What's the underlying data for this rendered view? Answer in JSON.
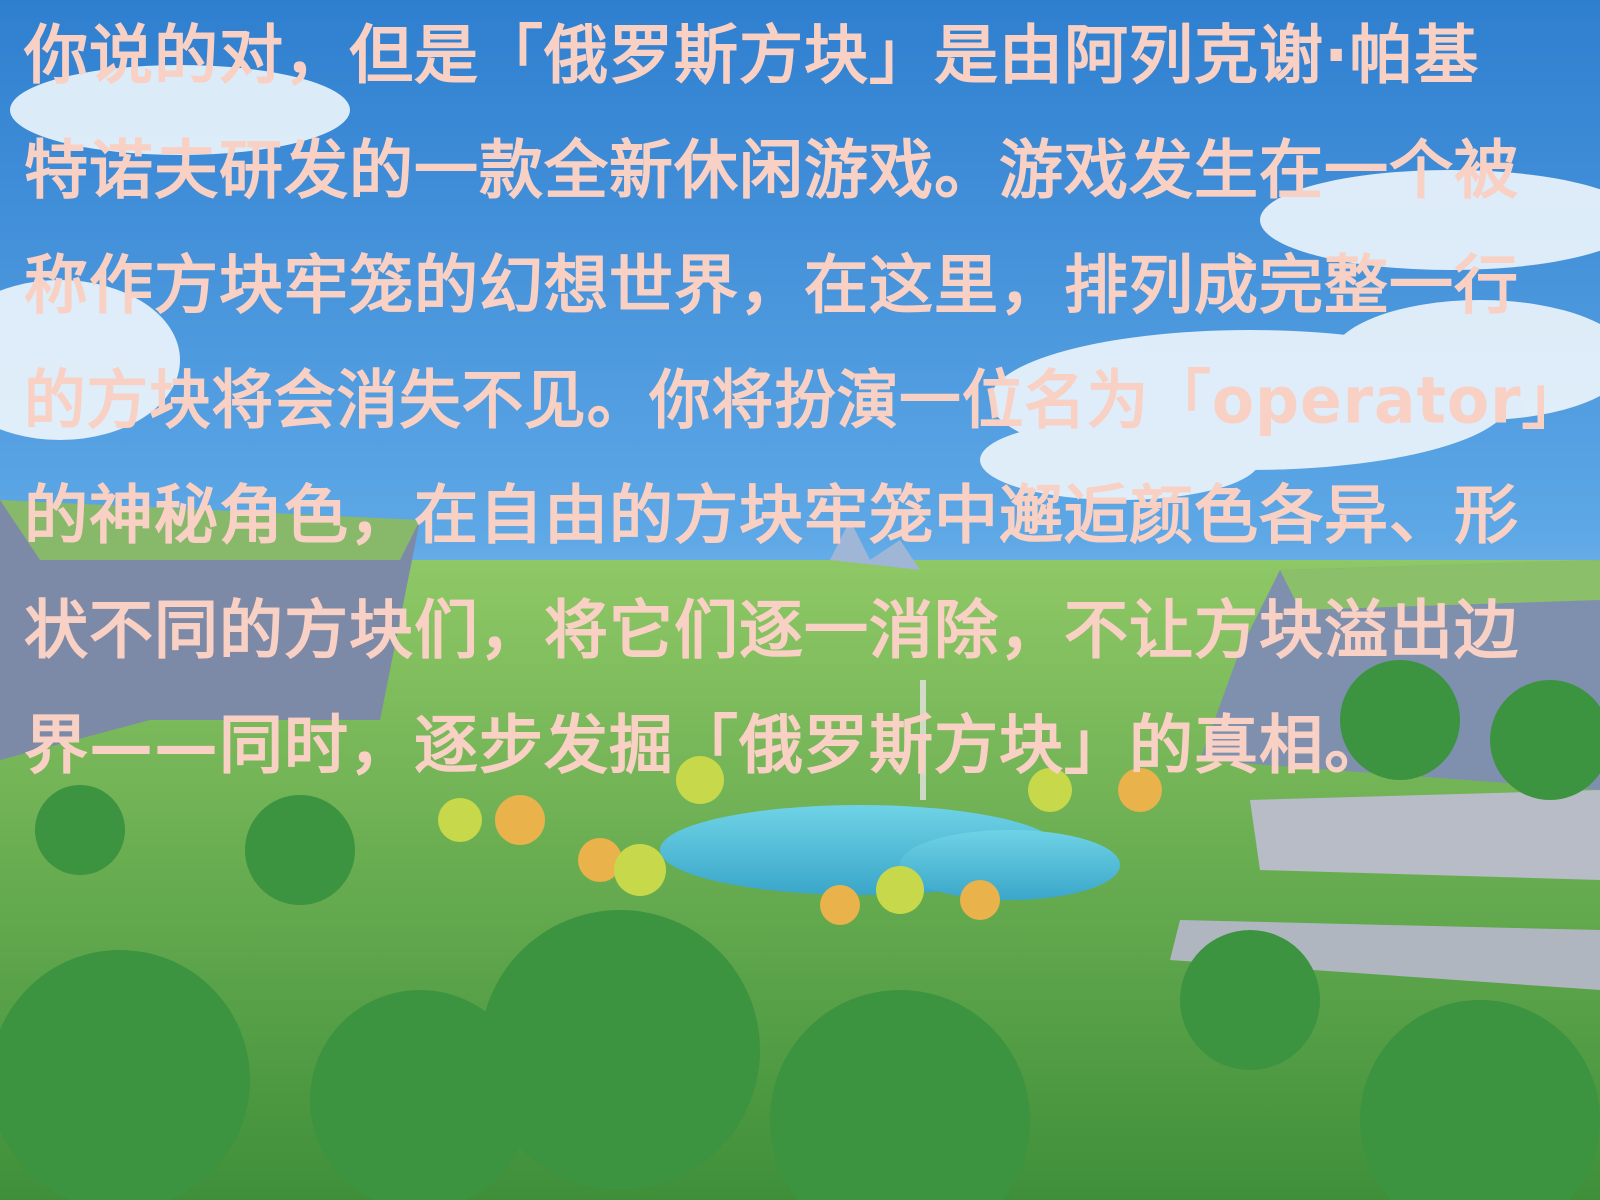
{
  "text": {
    "lines": [
      "你说的对，但是「俄罗斯方块」是由阿列克谢·帕基",
      "特诺夫研发的一款全新休闲游戏。游戏发生在一个被",
      "称作方块牢笼的幻想世界，在这里，排列成完整一行",
      "的方块将会消失不见。你将扮演一位名为「operator」",
      "的神秘角色，在自由的方块牢笼中邂逅颜色各异、形",
      "状不同的方块们，将它们逐一消除，不让方块溢出边",
      "界——同时，逐步发掘「俄罗斯方块」的真相。"
    ]
  }
}
